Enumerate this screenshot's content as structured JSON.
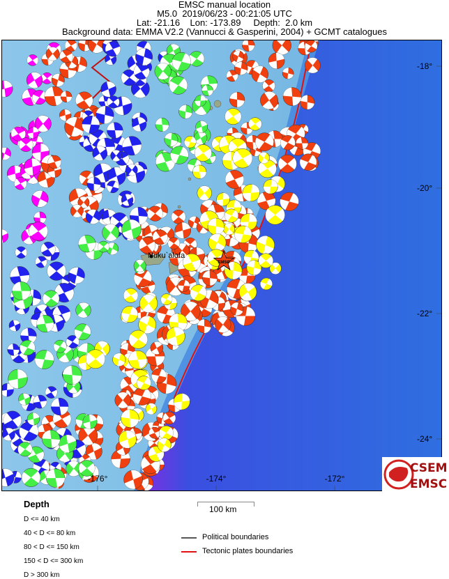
{
  "header": {
    "title": "EMSC manual location",
    "event": "M5.0  2019/06/23 - 00:21:05 UTC",
    "location": "Lat: -21.16    Lon: -173.89     Depth:  2.0 km",
    "background": "Background data: EMMA V2.2 (Vannucci & Gasperini, 2004) + GCMT catalogues"
  },
  "map": {
    "epicenter": {
      "lat": -21.16,
      "lon": -173.89,
      "label": "EMSC"
    },
    "city_label": "Nuku`alofa",
    "lon_labels": [
      "-176°",
      "-174°",
      "-172°"
    ],
    "lat_labels": [
      "-18°",
      "-20°",
      "-22°",
      "-24°"
    ],
    "colors": {
      "shallow": "#f0400f",
      "d40_80": "#ffff00",
      "d80_150": "#44ee44",
      "d150_300": "#2222ee",
      "deep": "#ff00ff",
      "tectonic": "#e01010",
      "political": "#555555",
      "star": "#f04010"
    }
  },
  "legend": {
    "depth_title": "Depth",
    "depth_items": [
      "D <= 40 km",
      "40 < D <= 80 km",
      "80 < D <= 150 km",
      "150 < D <= 300 km",
      "D > 300 km"
    ],
    "scale_label": "100 km",
    "political": "Political boundaries",
    "tectonic": "Tectonic plates boundaries"
  },
  "logo": {
    "text_top": "CSEM",
    "text_bottom": "EMSC"
  }
}
